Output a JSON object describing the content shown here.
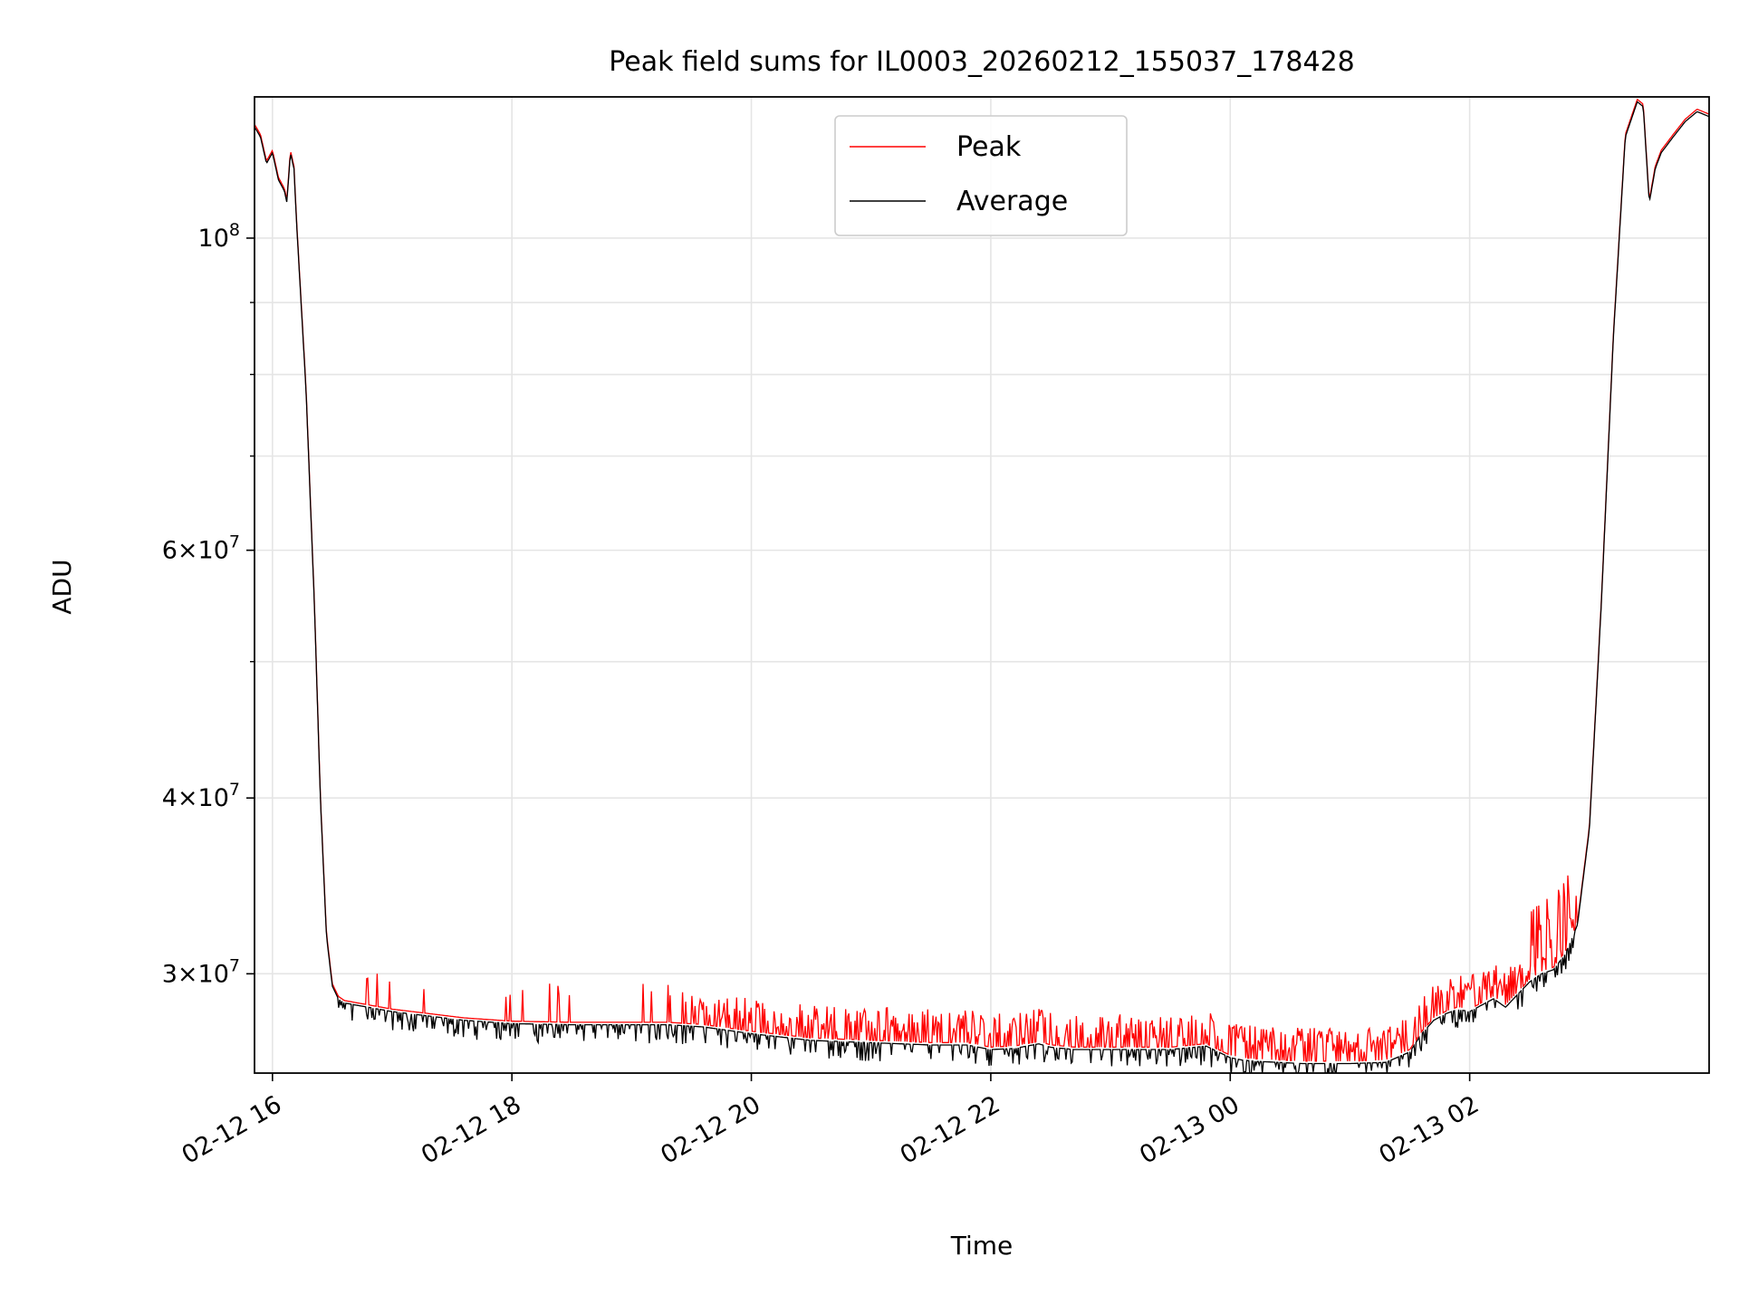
{
  "chart_data": {
    "type": "line",
    "title": "Peak field sums for IL0003_20260212_155037_178428",
    "xlabel": "Time",
    "ylabel": "ADU",
    "yscale": "log",
    "xlim_hours": [
      -0.15,
      12.0
    ],
    "ylim": [
      25500000,
      126000000
    ],
    "grid": true,
    "legend_position": "top-center",
    "x_ticks": [
      {
        "hour": 0,
        "label": "02-12 16"
      },
      {
        "hour": 2,
        "label": "02-12 18"
      },
      {
        "hour": 4,
        "label": "02-12 20"
      },
      {
        "hour": 6,
        "label": "02-12 22"
      },
      {
        "hour": 8,
        "label": "02-13 00"
      },
      {
        "hour": 10,
        "label": "02-13 02"
      }
    ],
    "y_ticks": [
      {
        "value": 30000000,
        "mant": "3",
        "exp": "7"
      },
      {
        "value": 40000000,
        "mant": "4",
        "exp": "7"
      },
      {
        "value": 60000000,
        "mant": "6",
        "exp": "7"
      },
      {
        "value": 100000000,
        "mant": "",
        "exp": "8"
      }
    ],
    "y_minor_ticks": [
      50000000,
      70000000,
      80000000,
      90000000
    ],
    "series": [
      {
        "name": "Peak",
        "color": "#ff0000"
      },
      {
        "name": "Average",
        "color": "#000000"
      }
    ],
    "average_baseline": {
      "hours": [
        -0.15,
        -0.1,
        -0.05,
        0.0,
        0.05,
        0.1,
        0.12,
        0.15,
        0.18,
        0.2,
        0.28,
        0.35,
        0.4,
        0.45,
        0.5,
        0.55,
        0.6,
        0.7,
        0.8,
        1.0,
        1.3,
        1.6,
        2.0,
        2.5,
        3.0,
        3.3,
        3.6,
        4.0,
        4.5,
        5.0,
        5.5,
        5.8,
        6.0,
        6.2,
        6.4,
        6.5,
        6.7,
        7.0,
        7.5,
        7.8,
        7.9,
        8.0,
        8.1,
        8.2,
        8.4,
        8.6,
        9.0,
        9.3,
        9.5,
        9.6,
        9.7,
        9.8,
        9.9,
        10.0,
        10.1,
        10.2,
        10.3,
        10.4,
        10.5,
        10.6,
        10.7,
        10.8,
        10.9,
        11.0,
        11.1,
        11.2,
        11.3,
        11.4,
        11.45,
        11.5,
        11.55,
        11.6,
        11.7,
        11.8,
        11.9,
        12.0
      ],
      "values": [
        120000000,
        118000000,
        113000000,
        115000000,
        110000000,
        108000000,
        106000000,
        115000000,
        112000000,
        103000000,
        78000000,
        55000000,
        40000000,
        32000000,
        29400000,
        28800000,
        28600000,
        28500000,
        28400000,
        28200000,
        28000000,
        27800000,
        27650000,
        27600000,
        27600000,
        27600000,
        27500000,
        27200000,
        26900000,
        26800000,
        26700000,
        26700000,
        26500000,
        26550000,
        26750000,
        26600000,
        26500000,
        26500000,
        26500000,
        26650000,
        26400000,
        26150000,
        26050000,
        26000000,
        25950000,
        25900000,
        25900000,
        25950000,
        26400000,
        27200000,
        27800000,
        28100000,
        28300000,
        28200000,
        28500000,
        28800000,
        28400000,
        29000000,
        29600000,
        30000000,
        30200000,
        31000000,
        32500000,
        38000000,
        55000000,
        85000000,
        118000000,
        125000000,
        124000000,
        106000000,
        112000000,
        115000000,
        118000000,
        121000000,
        123000000,
        122000000
      ]
    }
  }
}
